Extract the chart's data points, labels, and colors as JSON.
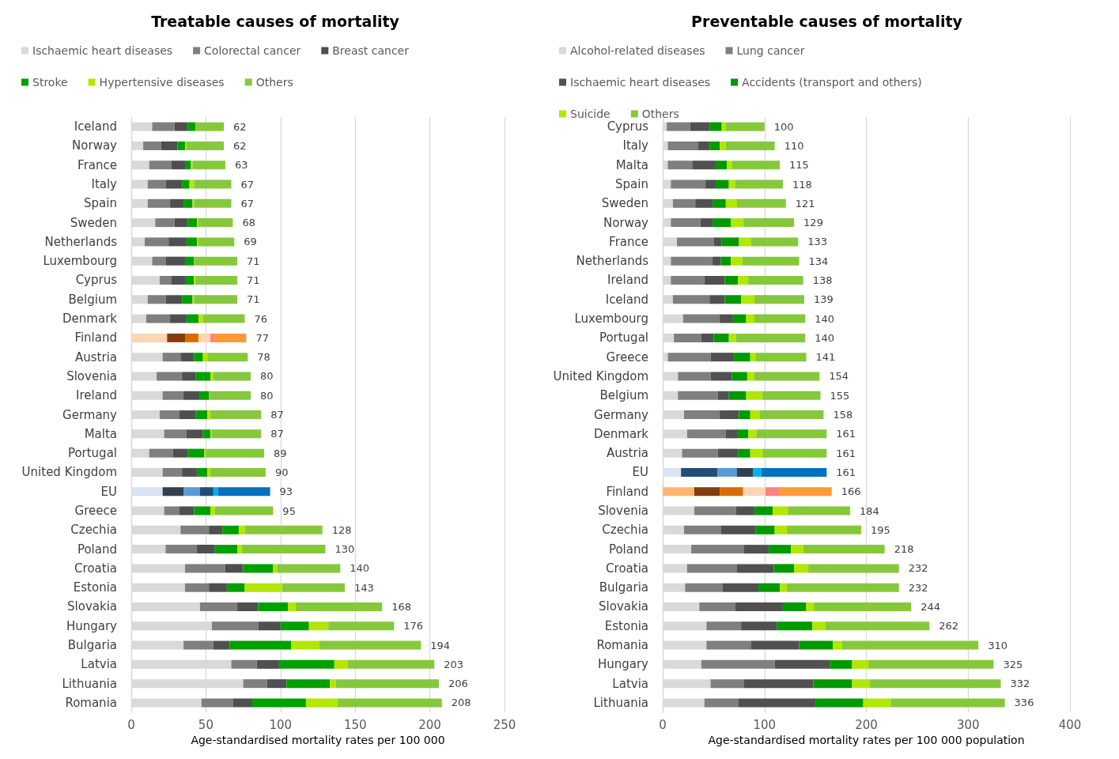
{
  "chart_data": [
    {
      "type": "bar",
      "orientation": "horizontal",
      "stacked": true,
      "title": "Treatable causes of mortality",
      "xlabel": "Age-standardised mortality rates per 100 000",
      "xlim": [
        0,
        250
      ],
      "xticks": [
        0,
        50,
        100,
        150,
        200,
        250
      ],
      "grid": "x",
      "legend": "top",
      "categories": [
        "Iceland",
        "Norway",
        "France",
        "Italy",
        "Spain",
        "Sweden",
        "Netherlands",
        "Luxembourg",
        "Cyprus",
        "Belgium",
        "Denmark",
        "Finland",
        "Austria",
        "Slovenia",
        "Ireland",
        "Germany",
        "Malta",
        "Portugal",
        "United Kingdom",
        "EU",
        "Greece",
        "Czechia",
        "Poland",
        "Croatia",
        "Estonia",
        "Slovakia",
        "Hungary",
        "Bulgaria",
        "Latvia",
        "Lithuania",
        "Romania"
      ],
      "totals": [
        "62",
        "62",
        "63",
        "67",
        "67",
        "68",
        "69",
        "71",
        "71",
        "71",
        "76",
        "77",
        "78",
        "80",
        "80",
        "87",
        "87",
        "89",
        "90",
        "93",
        "95",
        "128",
        "130",
        "140",
        "143",
        "168",
        "176",
        "194",
        "203",
        "206",
        "208"
      ],
      "series": [
        {
          "name": "Ischaemic heart diseases",
          "color": "#d9d9d9",
          "values": [
            14,
            8,
            12,
            11,
            11,
            16,
            9,
            14,
            19,
            11,
            10,
            24,
            21,
            17,
            21,
            19,
            22,
            12,
            21,
            21,
            22,
            33,
            23,
            36,
            36,
            46,
            54,
            35,
            67,
            75,
            47
          ],
          "colors": [
            null,
            null,
            null,
            null,
            null,
            null,
            null,
            null,
            null,
            null,
            null,
            "#fbd5b5",
            null,
            null,
            null,
            null,
            null,
            null,
            null,
            "#dae3f3",
            null,
            null,
            null,
            null,
            null,
            null,
            null,
            null,
            null,
            null,
            null
          ]
        },
        {
          "name": "Colorectal cancer",
          "color": "#7f7f7f",
          "values": [
            15,
            12,
            15,
            12,
            15,
            13,
            16,
            9,
            8,
            12,
            16,
            12,
            12,
            17,
            14,
            13,
            15,
            16,
            13,
            14,
            10,
            19,
            21,
            27,
            16,
            25,
            31,
            20,
            17,
            16,
            21
          ],
          "colors": [
            null,
            null,
            null,
            null,
            null,
            null,
            null,
            null,
            null,
            null,
            null,
            "#843c0c",
            null,
            null,
            null,
            null,
            null,
            null,
            null,
            "#333f50",
            null,
            null,
            null,
            null,
            null,
            null,
            null,
            null,
            null,
            null,
            null
          ]
        },
        {
          "name": "Breast cancer",
          "color": "#4f4f4f",
          "values": [
            9,
            11,
            9,
            11,
            9,
            9,
            12,
            13,
            9,
            11,
            11,
            9,
            9,
            9,
            11,
            11,
            11,
            10,
            10,
            11,
            10,
            9,
            12,
            12,
            12,
            14,
            15,
            11,
            15,
            13,
            13
          ],
          "colors": [
            null,
            null,
            null,
            null,
            null,
            null,
            null,
            null,
            null,
            null,
            null,
            "#d86c00",
            null,
            null,
            null,
            null,
            null,
            null,
            null,
            "#5b9bd5",
            null,
            null,
            null,
            null,
            null,
            null,
            null,
            null,
            null,
            null,
            null
          ]
        },
        {
          "name": "Stroke",
          "color": "#00a000",
          "values": [
            5,
            5,
            4,
            5,
            6,
            6,
            7,
            6,
            6,
            7,
            8,
            8,
            6,
            10,
            6,
            8,
            5,
            11,
            7,
            9,
            11,
            11,
            15,
            20,
            12,
            20,
            19,
            41,
            37,
            29,
            36
          ],
          "colors": [
            null,
            null,
            null,
            null,
            null,
            null,
            null,
            null,
            null,
            null,
            null,
            "#fbd5b5",
            null,
            null,
            null,
            null,
            null,
            null,
            null,
            "#1f4e79",
            null,
            null,
            null,
            null,
            null,
            null,
            null,
            null,
            null,
            null,
            null
          ]
        },
        {
          "name": "Hypertensive diseases",
          "color": "#b3e600",
          "values": [
            0,
            1,
            1,
            3,
            1,
            1,
            1,
            0,
            1,
            1,
            3,
            3,
            3,
            2,
            0,
            2,
            1,
            1,
            2,
            3,
            3,
            4,
            3,
            3,
            25,
            5,
            13,
            19,
            9,
            4,
            21
          ],
          "colors": [
            null,
            null,
            null,
            null,
            null,
            null,
            null,
            null,
            null,
            null,
            null,
            "#ff8080",
            null,
            null,
            null,
            null,
            null,
            null,
            null,
            "#00b0f0",
            null,
            null,
            null,
            null,
            null,
            null,
            null,
            null,
            null,
            null,
            null
          ]
        },
        {
          "name": "Others",
          "color": "#86c83c",
          "values": [
            19,
            25,
            22,
            25,
            25,
            23,
            24,
            29,
            28,
            29,
            28,
            21,
            27,
            25,
            28,
            34,
            33,
            39,
            37,
            35,
            39,
            52,
            56,
            42,
            42,
            58,
            44,
            68,
            58,
            69,
            70
          ],
          "colors": [
            null,
            null,
            null,
            null,
            null,
            null,
            null,
            null,
            null,
            null,
            null,
            "#ff9933",
            null,
            null,
            null,
            null,
            null,
            null,
            null,
            "#0070c0",
            null,
            null,
            null,
            null,
            null,
            null,
            null,
            null,
            null,
            null,
            null
          ]
        }
      ]
    },
    {
      "type": "bar",
      "orientation": "horizontal",
      "stacked": true,
      "title": "Preventable causes of mortality",
      "xlabel": "Age-standardised mortality rates per 100 000 population",
      "xlim": [
        0,
        400
      ],
      "xticks": [
        0,
        100,
        200,
        300,
        400
      ],
      "grid": "x",
      "legend": "top",
      "categories": [
        "Cyprus",
        "Italy",
        "Malta",
        "Spain",
        "Sweden",
        "Norway",
        "France",
        "Netherlands",
        "Ireland",
        "Iceland",
        "Luxembourg",
        "Portugal",
        "Greece",
        "United Kingdom",
        "Belgium",
        "Germany",
        "Denmark",
        "Austria",
        "EU",
        "Finland",
        "Slovenia",
        "Czechia",
        "Poland",
        "Croatia",
        "Bulgaria",
        "Slovakia",
        "Estonia",
        "Romania",
        "Hungary",
        "Latvia",
        "Lithuania"
      ],
      "totals": [
        "100",
        "110",
        "115",
        "118",
        "121",
        "129",
        "133",
        "134",
        "138",
        "139",
        "140",
        "140",
        "141",
        "154",
        "155",
        "158",
        "161",
        "161",
        "161",
        "166",
        "184",
        "195",
        "218",
        "232",
        "232",
        "244",
        "262",
        "310",
        "325",
        "332",
        "336"
      ],
      "series": [
        {
          "name": "Alcohol-related diseases",
          "color": "#d9d9d9",
          "values": [
            4,
            5,
            5,
            8,
            10,
            8,
            14,
            8,
            8,
            10,
            20,
            11,
            5,
            15,
            15,
            21,
            24,
            19,
            18,
            31,
            31,
            21,
            28,
            24,
            22,
            36,
            43,
            43,
            38,
            47,
            41
          ],
          "colors": [
            null,
            null,
            null,
            null,
            null,
            null,
            null,
            null,
            null,
            null,
            null,
            null,
            null,
            null,
            null,
            null,
            null,
            null,
            "#dae3f3",
            "#ffb66c",
            null,
            null,
            null,
            null,
            null,
            null,
            null,
            null,
            null,
            null,
            null
          ]
        },
        {
          "name": "Lung cancer",
          "color": "#7f7f7f",
          "values": [
            23,
            30,
            24,
            34,
            22,
            29,
            36,
            41,
            33,
            36,
            36,
            27,
            42,
            32,
            39,
            35,
            38,
            35,
            36,
            25,
            41,
            36,
            52,
            49,
            37,
            35,
            34,
            44,
            72,
            33,
            33
          ],
          "colors": [
            null,
            null,
            null,
            null,
            null,
            null,
            null,
            null,
            null,
            null,
            null,
            null,
            null,
            null,
            null,
            null,
            null,
            null,
            "#1f4e79",
            "#843c0c",
            null,
            null,
            null,
            null,
            null,
            null,
            null,
            null,
            null,
            null,
            null
          ]
        },
        {
          "name": "Ischaemic heart diseases",
          "color": "#505050",
          "values": [
            19,
            11,
            23,
            10,
            17,
            12,
            8,
            8,
            20,
            15,
            13,
            12,
            23,
            21,
            11,
            19,
            11,
            20,
            19,
            23,
            18,
            34,
            24,
            36,
            35,
            47,
            35,
            47,
            54,
            68,
            76
          ],
          "colors": [
            null,
            null,
            null,
            null,
            null,
            null,
            null,
            null,
            null,
            null,
            null,
            null,
            null,
            null,
            null,
            null,
            null,
            null,
            "#5b9bd5",
            "#d86c00",
            null,
            null,
            null,
            null,
            null,
            null,
            null,
            null,
            null,
            null,
            null
          ]
        },
        {
          "name": "Accidents (transport and others)",
          "color": "#009900",
          "values": [
            12,
            10,
            11,
            13,
            13,
            18,
            17,
            10,
            13,
            16,
            13,
            15,
            16,
            15,
            17,
            11,
            11,
            12,
            16,
            22,
            18,
            19,
            22,
            20,
            21,
            23,
            35,
            33,
            22,
            38,
            47
          ],
          "colors": [
            null,
            null,
            null,
            null,
            null,
            null,
            null,
            null,
            null,
            null,
            null,
            null,
            null,
            null,
            null,
            null,
            null,
            null,
            "#333f50",
            "#fbd5b5",
            null,
            null,
            null,
            null,
            null,
            null,
            null,
            null,
            null,
            null,
            null
          ]
        },
        {
          "name": "Suicide",
          "color": "#b0e800",
          "values": [
            4,
            6,
            5,
            6,
            11,
            12,
            12,
            11,
            10,
            13,
            8,
            7,
            5,
            7,
            16,
            9,
            8,
            12,
            8,
            14,
            15,
            12,
            12,
            14,
            7,
            7,
            13,
            9,
            16,
            17,
            27
          ],
          "colors": [
            null,
            null,
            null,
            null,
            null,
            null,
            null,
            null,
            null,
            null,
            null,
            null,
            null,
            null,
            null,
            null,
            null,
            null,
            "#00b0f0",
            "#ff8080",
            null,
            null,
            null,
            null,
            null,
            null,
            null,
            null,
            null,
            null,
            null
          ]
        },
        {
          "name": "Others",
          "color": "#86c83c",
          "values": [
            38,
            48,
            47,
            47,
            48,
            50,
            46,
            56,
            54,
            49,
            50,
            68,
            50,
            64,
            57,
            63,
            69,
            63,
            64,
            51,
            61,
            73,
            80,
            89,
            110,
            96,
            102,
            134,
            123,
            129,
            112
          ],
          "colors": [
            null,
            null,
            null,
            null,
            null,
            null,
            null,
            null,
            null,
            null,
            null,
            null,
            null,
            null,
            null,
            null,
            null,
            null,
            "#0070c0",
            "#ff9933",
            null,
            null,
            null,
            null,
            null,
            null,
            null,
            null,
            null,
            null,
            null
          ]
        }
      ]
    }
  ]
}
